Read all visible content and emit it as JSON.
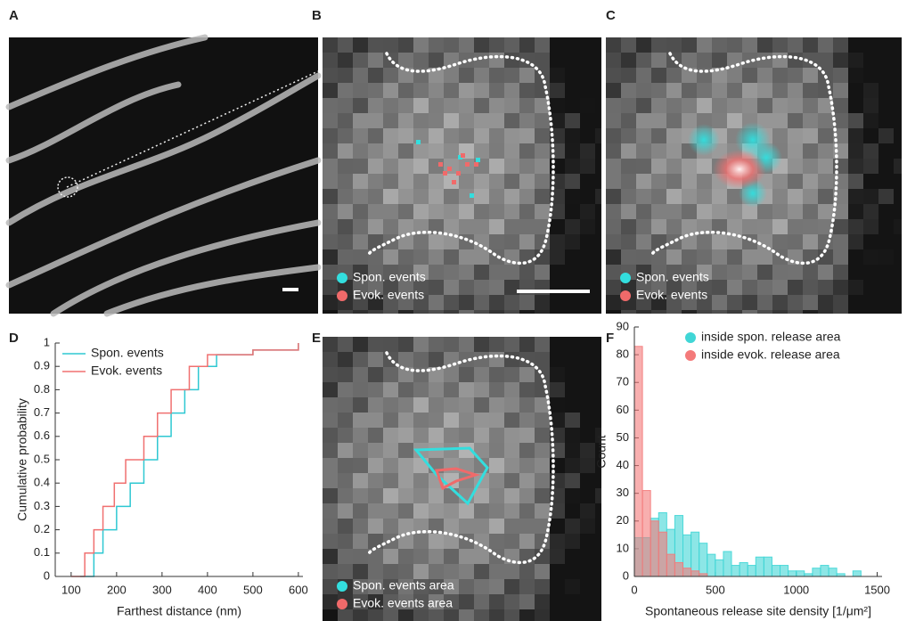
{
  "panel_labels": [
    "A",
    "B",
    "C",
    "D",
    "E",
    "F"
  ],
  "image_legends": {
    "B": {
      "items": [
        "Spon. events",
        "Evok. events"
      ],
      "colors": [
        "#33dede",
        "#f06a6a"
      ]
    },
    "C": {
      "items": [
        "Spon. events",
        "Evok. events"
      ],
      "colors": [
        "#33dede",
        "#f06a6a"
      ]
    },
    "E": {
      "items": [
        "Spon. events area",
        "Evok. events area"
      ],
      "colors": [
        "#33dede",
        "#f06a6a"
      ]
    }
  },
  "chart_data": [
    {
      "type": "line",
      "x_label": "Farthest distance (nm)",
      "y_label": "Cumulative probability",
      "xlim": [
        65,
        610
      ],
      "xticks": [
        100,
        200,
        300,
        400,
        500,
        600
      ],
      "ylim": [
        0,
        1
      ],
      "yticks": [
        0,
        0.1,
        0.2,
        0.3,
        0.4,
        0.5,
        0.6,
        0.7,
        0.8,
        0.9,
        1
      ],
      "legend": "upper left",
      "series": [
        {
          "name": "Spon. events",
          "color": "#2ec8d2",
          "x": [
            120,
            150,
            170,
            200,
            230,
            260,
            290,
            320,
            350,
            380,
            420,
            500,
            600
          ],
          "values": [
            0,
            0.1,
            0.2,
            0.3,
            0.4,
            0.5,
            0.6,
            0.7,
            0.8,
            0.9,
            0.95,
            0.97,
            1
          ]
        },
        {
          "name": "Evok. events",
          "color": "#f07070",
          "x": [
            100,
            130,
            150,
            170,
            195,
            220,
            260,
            290,
            320,
            360,
            400,
            500,
            600
          ],
          "values": [
            0,
            0.1,
            0.2,
            0.3,
            0.4,
            0.5,
            0.6,
            0.7,
            0.8,
            0.9,
            0.95,
            0.97,
            1
          ]
        }
      ]
    },
    {
      "type": "histogram",
      "x_label": "Spontaneous release site density [1/μm²]",
      "y_label": "Count",
      "xlim": [
        0,
        1530
      ],
      "xticks": [
        0,
        500,
        1000,
        1500
      ],
      "ylim": [
        0,
        90
      ],
      "yticks": [
        0,
        10,
        20,
        30,
        40,
        50,
        60,
        70,
        80,
        90
      ],
      "legend": "upper right",
      "bins": [
        0,
        50,
        100,
        150,
        200,
        250,
        300,
        350,
        400,
        450,
        500,
        550,
        600,
        650,
        700,
        750,
        800,
        850,
        900,
        950,
        1000,
        1050,
        1100,
        1150,
        1200,
        1250,
        1300,
        1350,
        1400
      ],
      "series": [
        {
          "name": "inside spon. release area",
          "color": "#40d6d6",
          "values": [
            14,
            14,
            21,
            23,
            17,
            22,
            15,
            16,
            12,
            8,
            6,
            9,
            4,
            5,
            4,
            7,
            7,
            4,
            4,
            2,
            2,
            1,
            3,
            4,
            3,
            1,
            0,
            2
          ]
        },
        {
          "name": "inside evok. release area",
          "color": "#f47a7a",
          "values": [
            83,
            31,
            20,
            16,
            8,
            5,
            3,
            2,
            1,
            0,
            0,
            0,
            0,
            0,
            0,
            0,
            0,
            0,
            0,
            0,
            0,
            0,
            0,
            0,
            0,
            0,
            0,
            0
          ]
        }
      ]
    }
  ]
}
